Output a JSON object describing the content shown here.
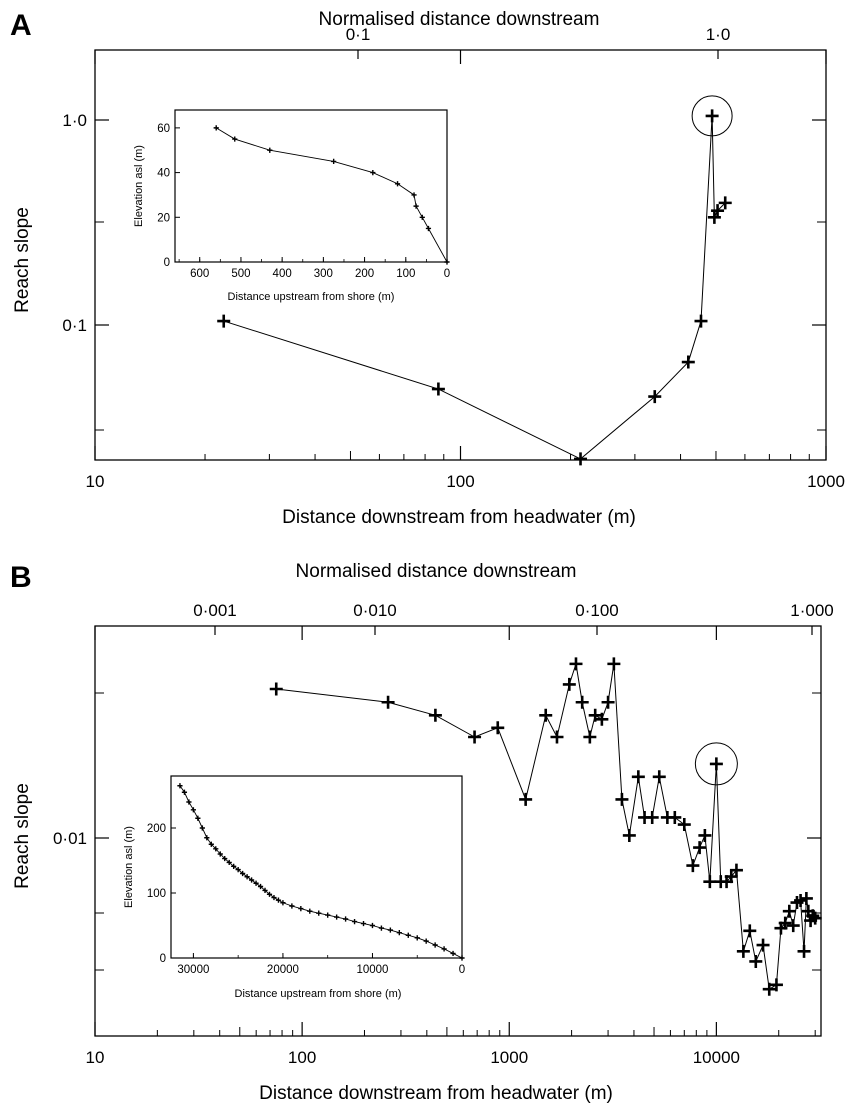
{
  "panels": [
    {
      "letter": "A"
    },
    {
      "letter": "B"
    }
  ],
  "chart_data": [
    {
      "panel": "A",
      "type": "line",
      "xscale": "log",
      "yscale": "log",
      "xlabel": "Distance downstream from headwater (m)",
      "top_xlabel": "Normalised distance downstream",
      "ylabel": "Reach slope",
      "xlim": [
        10,
        1000
      ],
      "ylim": [
        0.0287,
        1.513
      ],
      "x_ticklabels": [
        "10",
        "100",
        "1000"
      ],
      "top_ticklabels": [
        "0·1",
        "1·0"
      ],
      "y_ticklabels": [
        "0·1",
        "1·0"
      ],
      "x": [
        22.5,
        87,
        213,
        340,
        420,
        455,
        488,
        495,
        505,
        530
      ],
      "y": [
        0.11,
        0.057,
        0.029,
        0.053,
        0.074,
        0.11,
        0.8,
        0.3,
        0.32,
        0.345
      ],
      "highlight": {
        "x": 488,
        "y": 0.8
      },
      "inset": {
        "type": "line",
        "xlabel": "Distance upstream from shore (m)",
        "ylabel": "Elevation asl (m)",
        "xlim": [
          660,
          0
        ],
        "ylim": [
          0,
          68
        ],
        "x_ticklabels": [
          "600",
          "500",
          "400",
          "300",
          "200",
          "100",
          "0"
        ],
        "y_ticklabels": [
          "0",
          "20",
          "40",
          "60"
        ],
        "x": [
          560,
          515,
          430,
          275,
          180,
          120,
          80,
          75,
          60,
          45,
          0
        ],
        "y": [
          60,
          55,
          50,
          45,
          40,
          35,
          30,
          25,
          20,
          15,
          0
        ]
      }
    },
    {
      "panel": "B",
      "type": "line",
      "xscale": "log",
      "yscale": "log",
      "xlabel": "Distance downstream from headwater (m)",
      "top_xlabel": "Normalised distance downstream",
      "ylabel": "Reach slope",
      "xlim": [
        10,
        32000
      ],
      "ylim": [
        0.00165,
        0.063
      ],
      "x_ticklabels": [
        "10",
        "100",
        "1000",
        "10000"
      ],
      "top_ticklabels": [
        "0·001",
        "0·010",
        "0·100",
        "1·000"
      ],
      "y_ticklabels": [
        "0·01"
      ],
      "x": [
        75,
        260,
        440,
        680,
        880,
        1200,
        1500,
        1700,
        1950,
        2100,
        2250,
        2450,
        2600,
        2800,
        3000,
        3200,
        3500,
        3800,
        4200,
        4500,
        4900,
        5300,
        5800,
        6300,
        7000,
        7700,
        8300,
        8800,
        9300,
        10000,
        10500,
        11200,
        11800,
        12500,
        13500,
        14500,
        15500,
        16800,
        18000,
        19500,
        20500,
        21500,
        22500,
        23500,
        24500,
        25500,
        26500,
        27200,
        27800,
        28500,
        29200,
        30000
      ],
      "y": [
        0.036,
        0.032,
        0.0285,
        0.0235,
        0.0255,
        0.0135,
        0.0285,
        0.0235,
        0.0375,
        0.045,
        0.032,
        0.0235,
        0.0285,
        0.0275,
        0.032,
        0.045,
        0.0135,
        0.0098,
        0.0165,
        0.0115,
        0.0115,
        0.0165,
        0.0115,
        0.0115,
        0.0108,
        0.0075,
        0.0088,
        0.0098,
        0.0065,
        0.0185,
        0.0065,
        0.0065,
        0.0068,
        0.0072,
        0.0035,
        0.0042,
        0.0032,
        0.0037,
        0.0025,
        0.0026,
        0.0043,
        0.0045,
        0.005,
        0.0044,
        0.0054,
        0.0055,
        0.0035,
        0.0056,
        0.005,
        0.0046,
        0.0048,
        0.0047
      ],
      "highlight": {
        "x": 10000,
        "y": 0.0185
      },
      "inset": {
        "type": "line",
        "xlabel": "Distance upstream from shore (m)",
        "ylabel": "Elevation asl (m)",
        "xlim": [
          32500,
          0
        ],
        "ylim": [
          0,
          280
        ],
        "x_ticklabels": [
          "30000",
          "20000",
          "10000",
          "0"
        ],
        "y_ticklabels": [
          "0",
          "100",
          "200"
        ],
        "x": [
          31500,
          31000,
          30500,
          30000,
          29500,
          29000,
          28500,
          28000,
          27500,
          27000,
          26500,
          26000,
          25500,
          25000,
          24500,
          24000,
          23500,
          23000,
          22500,
          22000,
          21500,
          21000,
          20500,
          20000,
          19000,
          18000,
          17000,
          16000,
          15000,
          14000,
          13000,
          12000,
          11000,
          10000,
          9000,
          8000,
          7000,
          6000,
          5000,
          4000,
          3000,
          2000,
          1000,
          0
        ],
        "y": [
          265,
          255,
          240,
          228,
          215,
          200,
          185,
          175,
          168,
          160,
          153,
          147,
          141,
          136,
          130,
          125,
          120,
          115,
          110,
          104,
          98,
          93,
          89,
          85,
          80,
          76,
          72,
          69,
          66,
          63,
          60,
          56,
          53,
          50,
          46,
          43,
          39,
          35,
          31,
          26,
          20,
          14,
          7,
          0
        ]
      }
    }
  ]
}
